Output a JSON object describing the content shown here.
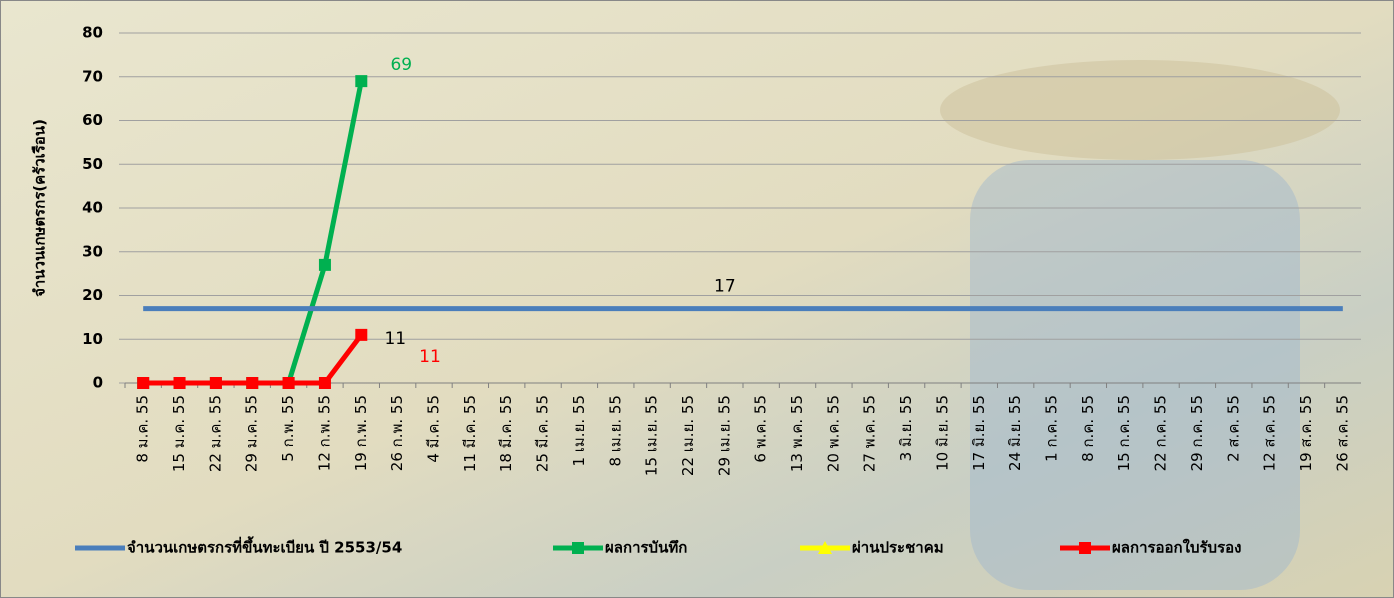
{
  "chart_data": {
    "type": "line",
    "y_label": "จำนวนเกษตรกร(ครัวเรือน)",
    "categories": [
      "8 ม.ค. 55",
      "15 ม.ค. 55",
      "22 ม.ค. 55",
      "29 ม.ค. 55",
      "5 ก.พ. 55",
      "12 ก.พ. 55",
      "19 ก.พ. 55",
      "26 ก.พ. 55",
      "4 มี.ค. 55",
      "11 มี.ค. 55",
      "18 มี.ค. 55",
      "25 มี.ค. 55",
      "1 เม.ย. 55",
      "8 เม.ย. 55",
      "15 เม.ย. 55",
      "22 เม.ย. 55",
      "29 เม.ย. 55",
      "6 พ.ค. 55",
      "13 พ.ค. 55",
      "20 พ.ค. 55",
      "27 พ.ค. 55",
      "3 มิ.ย. 55",
      "10 มิ.ย. 55",
      "17 มิ.ย. 55",
      "24 มิ.ย. 55",
      "1 ก.ค. 55",
      "8 ก.ค. 55",
      "15 ก.ค. 55",
      "22 ก.ค. 55",
      "29 ก.ค. 55",
      "2 ส.ค. 55",
      "12 ส.ค. 55",
      "19 ส.ค. 55",
      "26 ส.ค. 55"
    ],
    "series": [
      {
        "name": "จำนวนเกษตรกรที่ขึ้นทะเบียน ปี 2553/54",
        "color": "#4a7ebb",
        "marker": "none",
        "values": [
          17,
          17,
          17,
          17,
          17,
          17,
          17,
          17,
          17,
          17,
          17,
          17,
          17,
          17,
          17,
          17,
          17,
          17,
          17,
          17,
          17,
          17,
          17,
          17,
          17,
          17,
          17,
          17,
          17,
          17,
          17,
          17,
          17,
          17
        ]
      },
      {
        "name": "ผลการบันทึก",
        "color": "#00b050",
        "marker": "square",
        "values": [
          0,
          0,
          0,
          0,
          0,
          27,
          69,
          null,
          null,
          null,
          null,
          null,
          null,
          null,
          null,
          null,
          null,
          null,
          null,
          null,
          null,
          null,
          null,
          null,
          null,
          null,
          null,
          null,
          null,
          null,
          null,
          null,
          null,
          null
        ]
      },
      {
        "name": "ผ่านประชาคม",
        "color": "#ffff00",
        "marker": "triangle",
        "values": [
          null,
          null,
          null,
          null,
          null,
          null,
          null,
          null,
          null,
          null,
          null,
          null,
          null,
          null,
          null,
          null,
          null,
          null,
          null,
          null,
          null,
          null,
          null,
          null,
          null,
          null,
          null,
          null,
          null,
          null,
          null,
          null,
          null,
          null
        ]
      },
      {
        "name": "ผลการออกใบรับรอง",
        "color": "#ff0000",
        "marker": "square",
        "values": [
          0,
          0,
          0,
          0,
          0,
          0,
          11,
          null,
          null,
          null,
          null,
          null,
          null,
          null,
          null,
          null,
          null,
          null,
          null,
          null,
          null,
          null,
          null,
          null,
          null,
          null,
          null,
          null,
          null,
          null,
          null,
          null,
          null,
          null
        ]
      }
    ],
    "annotations": [
      "11"
    ],
    "ylim": [
      0,
      80
    ],
    "yticks": [
      0,
      10,
      20,
      30,
      40,
      50,
      60,
      70,
      80
    ],
    "grid": true,
    "legend": "bottom"
  }
}
